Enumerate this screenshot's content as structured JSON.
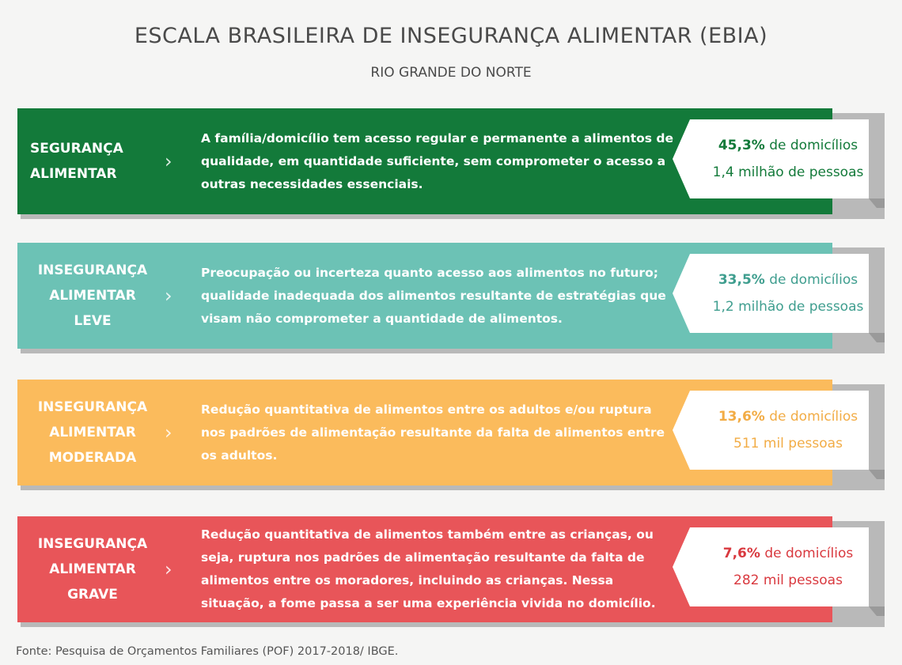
{
  "title": "ESCALA BRASILEIRA DE INSEGURANÇA ALIMENTAR (EBIA)",
  "subtitle": "RIO GRANDE DO NORTE",
  "rows": [
    {
      "color": "#137a3a",
      "text_color": "#137a3a",
      "label_lines": [
        "SEGURANÇA",
        "ALIMENTAR"
      ],
      "chevron_icon": "chevron-right-icon",
      "description": "A família/domicílio tem acesso regular e permanente a alimentos de qualidade, em quantidade suficiente, sem comprometer o acesso a outras necessidades essenciais.",
      "percent": "45,3%",
      "percent_suffix": " de domicílios",
      "people": "1,4 milhão de pessoas"
    },
    {
      "color": "#6cc2b5",
      "text_color": "#3f9e8f",
      "label_lines": [
        "INSEGURANÇA",
        "ALIMENTAR",
        "LEVE"
      ],
      "chevron_icon": "chevron-right-icon",
      "description": "Preocupação ou incerteza quanto acesso aos alimentos no futuro; qualidade inadequada dos alimentos resultante de estratégias que visam não comprometer a quantidade de alimentos.",
      "percent": "33,5%",
      "percent_suffix": " de domicílios",
      "people": "1,2 milhão de pessoas"
    },
    {
      "color": "#fbbb5c",
      "text_color": "#f2ac45",
      "label_lines": [
        "INSEGURANÇA",
        "ALIMENTAR",
        "MODERADA"
      ],
      "chevron_icon": "chevron-right-icon",
      "description": "Redução quantitativa de alimentos entre os adultos e/ou ruptura nos padrões de alimentação resultante da falta de alimentos entre os adultos.",
      "percent": "13,6%",
      "percent_suffix": " de domicílios",
      "people": "511 mil pessoas"
    },
    {
      "color": "#e85559",
      "text_color": "#d9393f",
      "label_lines": [
        "INSEGURANÇA",
        "ALIMENTAR",
        "GRAVE"
      ],
      "chevron_icon": "chevron-right-icon",
      "description": "Redução quantitativa de alimentos também entre as crianças, ou seja, ruptura nos padrões de alimentação resultante da falta de alimentos entre os moradores, incluindo as crianças. Nessa situação, a fome passa a ser uma experiência vivida no domicílio.",
      "percent": "7,6%",
      "percent_suffix": " de domicílios",
      "people": "282 mil pessoas"
    }
  ],
  "source": "Fonte: Pesquisa de Orçamentos Familiares (POF) 2017-2018/ IBGE."
}
